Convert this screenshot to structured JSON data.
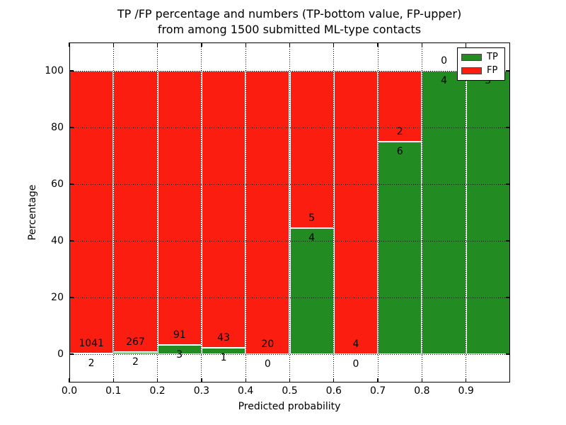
{
  "title": {
    "line1": "TP /FP percentage and numbers (TP-bottom value, FP-upper)",
    "line2": "from among 1500 submitted ML-type contacts"
  },
  "chart_data": {
    "type": "bar",
    "stacked": true,
    "orientation": "vertical",
    "title": "TP /FP percentage and numbers (TP-bottom value, FP-upper)\nfrom among 1500 submitted ML-type contacts",
    "xlabel": "Predicted probability",
    "ylabel": "Percentage",
    "xlim": [
      0.0,
      1.0
    ],
    "ylim": [
      -10,
      110
    ],
    "grid": "dotted",
    "legend_position": "upper right",
    "bin_edges": [
      0.0,
      0.1,
      0.2,
      0.3,
      0.4,
      0.5,
      0.6,
      0.7,
      0.8,
      0.9,
      1.0
    ],
    "x_tick_labels": [
      "0.0",
      "0.1",
      "0.2",
      "0.3",
      "0.4",
      "0.5",
      "0.6",
      "0.7",
      "0.8",
      "0.9"
    ],
    "y_tick_values": [
      0,
      20,
      40,
      60,
      80,
      100
    ],
    "y_tick_labels": [
      "0",
      "20",
      "40",
      "60",
      "80",
      "100"
    ],
    "series": [
      {
        "name": "TP",
        "color": "#228b22",
        "counts": [
          2,
          2,
          3,
          1,
          0,
          4,
          0,
          6,
          4,
          5
        ]
      },
      {
        "name": "FP",
        "color": "#fb1d10",
        "counts": [
          1041,
          267,
          91,
          43,
          20,
          5,
          4,
          2,
          0,
          0
        ]
      }
    ],
    "tp_percentages": [
      0.2,
      0.7,
      3.2,
      2.3,
      0.0,
      44.4,
      0.0,
      75.0,
      100.0,
      100.0
    ],
    "total_contacts": 1500
  }
}
